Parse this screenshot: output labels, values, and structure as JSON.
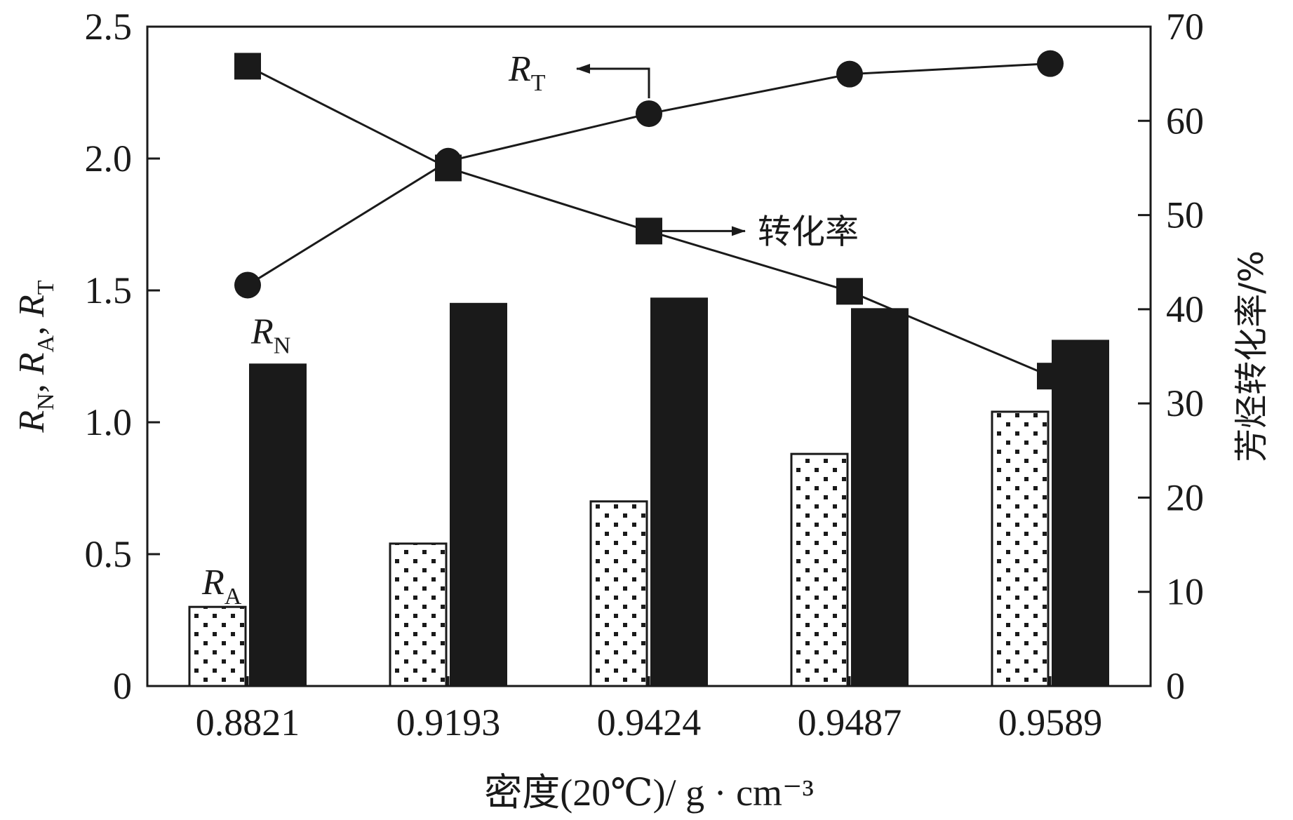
{
  "chart_data": {
    "type": "bar",
    "categories": [
      "0.8821",
      "0.9193",
      "0.9424",
      "0.9487",
      "0.9589"
    ],
    "xlabel": "密度(20℃)/ g · cm⁻³",
    "ylabel": "R_N, R_A, R_T",
    "ylabel_parts": [
      {
        "main": "R",
        "sub": "N"
      },
      {
        "main": "R",
        "sub": "A"
      },
      {
        "main": "R",
        "sub": "T"
      }
    ],
    "ylabel_separator": ", ",
    "y2label": "芳烃转化率/%",
    "ylim": [
      0,
      2.5
    ],
    "y2lim": [
      0,
      70
    ],
    "yticks": [
      "0",
      "0.5",
      "1.0",
      "1.5",
      "2.0",
      "2.5"
    ],
    "y2ticks": [
      "0",
      "10",
      "20",
      "30",
      "40",
      "50",
      "60",
      "70"
    ],
    "series": [
      {
        "name": "R_A",
        "name_main": "R",
        "name_sub": "A",
        "kind": "bar",
        "pattern": "dotted",
        "axis": "left",
        "values": [
          0.3,
          0.54,
          0.7,
          0.88,
          1.04
        ]
      },
      {
        "name": "R_N",
        "name_main": "R",
        "name_sub": "N",
        "kind": "bar",
        "pattern": "solid",
        "axis": "left",
        "values": [
          1.22,
          1.45,
          1.47,
          1.43,
          1.31
        ]
      },
      {
        "name": "R_T",
        "name_main": "R",
        "name_sub": "T",
        "kind": "line",
        "marker": "circle",
        "axis": "left",
        "values": [
          1.52,
          1.99,
          2.17,
          2.32,
          2.36
        ]
      },
      {
        "name": "转化率",
        "kind": "line",
        "marker": "square",
        "axis": "right",
        "values": [
          65.8,
          55.0,
          48.3,
          41.9,
          32.9
        ]
      }
    ],
    "grid": false,
    "colors": {
      "ink": "#1a1a1a",
      "background": "#ffffff"
    }
  }
}
